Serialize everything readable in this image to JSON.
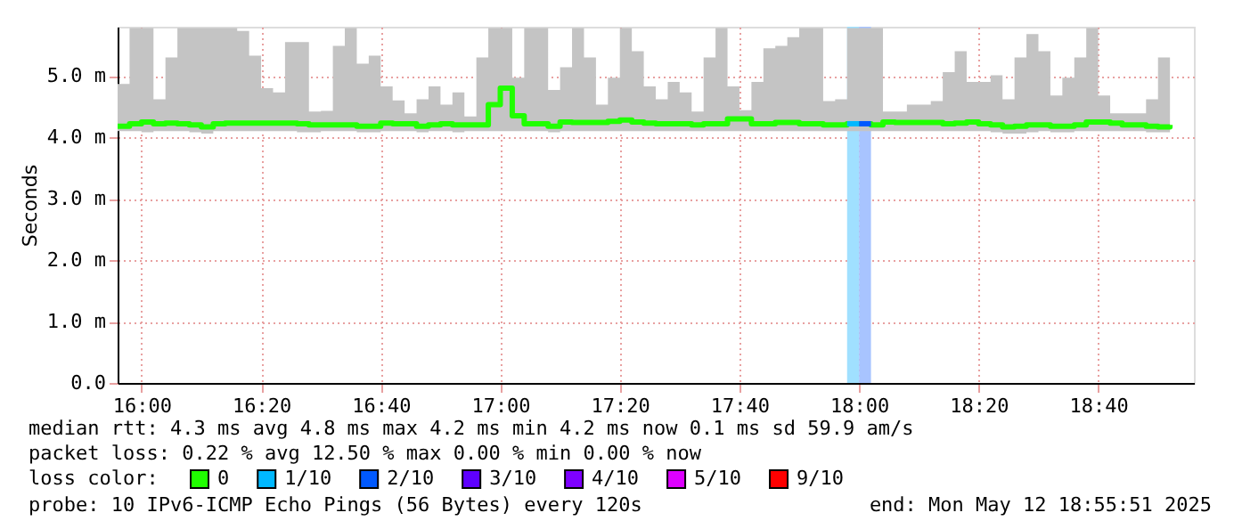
{
  "chart_data": {
    "type": "step",
    "ylabel": "Seconds",
    "legend_title": "loss color:",
    "legend": "bottom",
    "grid": true,
    "xlim": [
      "2025-05-12T15:56",
      "2025-05-12T18:56"
    ],
    "xticks": [
      {
        "value": "2025-05-12T16:00",
        "label": "16:00"
      },
      {
        "value": "2025-05-12T16:20",
        "label": "16:20"
      },
      {
        "value": "2025-05-12T16:40",
        "label": "16:40"
      },
      {
        "value": "2025-05-12T17:00",
        "label": "17:00"
      },
      {
        "value": "2025-05-12T17:20",
        "label": "17:20"
      },
      {
        "value": "2025-05-12T17:40",
        "label": "17:40"
      },
      {
        "value": "2025-05-12T18:00",
        "label": "18:00"
      },
      {
        "value": "2025-05-12T18:20",
        "label": "18:20"
      },
      {
        "value": "2025-05-12T18:40",
        "label": "18:40"
      }
    ],
    "ylim": [
      0,
      5.8
    ],
    "yticks": [
      {
        "value": 0,
        "label": "0.0"
      },
      {
        "value": 1,
        "label": "1.0 m"
      },
      {
        "value": 2,
        "label": "2.0 m"
      },
      {
        "value": 3,
        "label": "3.0 m"
      },
      {
        "value": 4,
        "label": "4.0 m"
      },
      {
        "value": 5,
        "label": "5.0 m"
      }
    ],
    "bands": [
      {
        "axis": "x",
        "from": "2025-05-12T17:58",
        "to": "2025-05-12T18:00",
        "color": "#a0e0ff"
      },
      {
        "axis": "x",
        "from": "2025-05-12T18:00",
        "to": "2025-05-12T18:02",
        "color": "#a8c4ff"
      }
    ],
    "series": [
      {
        "name": "0",
        "color": "#20ff00",
        "x": [
          "2025-05-12T15:56",
          "2025-05-12T15:58",
          "2025-05-12T16:00",
          "2025-05-12T16:02",
          "2025-05-12T16:04",
          "2025-05-12T16:06",
          "2025-05-12T16:08",
          "2025-05-12T16:10",
          "2025-05-12T16:12",
          "2025-05-12T16:14",
          "2025-05-12T16:16",
          "2025-05-12T16:18",
          "2025-05-12T16:20",
          "2025-05-12T16:22",
          "2025-05-12T16:24",
          "2025-05-12T16:26",
          "2025-05-12T16:28",
          "2025-05-12T16:30",
          "2025-05-12T16:32",
          "2025-05-12T16:34",
          "2025-05-12T16:36",
          "2025-05-12T16:38",
          "2025-05-12T16:40",
          "2025-05-12T16:42",
          "2025-05-12T16:44",
          "2025-05-12T16:46",
          "2025-05-12T16:48",
          "2025-05-12T16:50",
          "2025-05-12T16:52",
          "2025-05-12T16:54",
          "2025-05-12T16:56",
          "2025-05-12T16:58",
          "2025-05-12T17:00",
          "2025-05-12T17:02",
          "2025-05-12T17:04",
          "2025-05-12T17:06",
          "2025-05-12T17:08",
          "2025-05-12T17:10",
          "2025-05-12T17:12",
          "2025-05-12T17:14",
          "2025-05-12T17:16",
          "2025-05-12T17:18",
          "2025-05-12T17:20",
          "2025-05-12T17:22",
          "2025-05-12T17:24",
          "2025-05-12T17:26",
          "2025-05-12T17:28",
          "2025-05-12T17:30",
          "2025-05-12T17:32",
          "2025-05-12T17:34",
          "2025-05-12T17:36",
          "2025-05-12T17:38",
          "2025-05-12T17:40",
          "2025-05-12T17:42",
          "2025-05-12T17:44",
          "2025-05-12T17:46",
          "2025-05-12T17:48",
          "2025-05-12T17:50",
          "2025-05-12T17:52",
          "2025-05-12T17:54",
          "2025-05-12T17:56",
          "2025-05-12T17:58",
          "2025-05-12T18:00",
          "2025-05-12T18:02",
          "2025-05-12T18:04",
          "2025-05-12T18:06",
          "2025-05-12T18:08",
          "2025-05-12T18:10",
          "2025-05-12T18:12",
          "2025-05-12T18:14",
          "2025-05-12T18:16",
          "2025-05-12T18:18",
          "2025-05-12T18:20",
          "2025-05-12T18:22",
          "2025-05-12T18:24",
          "2025-05-12T18:26",
          "2025-05-12T18:28",
          "2025-05-12T18:30",
          "2025-05-12T18:32",
          "2025-05-12T18:34",
          "2025-05-12T18:36",
          "2025-05-12T18:38",
          "2025-05-12T18:40",
          "2025-05-12T18:42",
          "2025-05-12T18:44",
          "2025-05-12T18:46",
          "2025-05-12T18:48",
          "2025-05-12T18:50",
          "2025-05-12T18:52"
        ],
        "values": [
          4.18,
          4.22,
          4.25,
          4.22,
          4.23,
          4.22,
          4.2,
          4.17,
          4.22,
          4.23,
          4.23,
          4.23,
          4.23,
          4.23,
          4.23,
          4.22,
          4.2,
          4.2,
          4.2,
          4.2,
          4.18,
          4.18,
          4.23,
          4.22,
          4.22,
          4.18,
          4.2,
          4.22,
          4.2,
          4.2,
          4.2,
          4.53,
          4.8,
          4.35,
          4.22,
          4.22,
          4.18,
          4.25,
          4.24,
          4.24,
          4.24,
          4.26,
          4.28,
          4.25,
          4.23,
          4.22,
          4.22,
          4.22,
          4.2,
          4.22,
          4.22,
          4.3,
          4.3,
          4.22,
          4.22,
          4.24,
          4.24,
          4.22,
          4.22,
          4.2,
          4.2,
          4.22,
          4.22,
          4.2,
          4.25,
          4.24,
          4.24,
          4.24,
          4.24,
          4.22,
          4.23,
          4.25,
          4.22,
          4.2,
          4.17,
          4.18,
          4.2,
          4.2,
          4.18,
          4.18,
          4.2,
          4.25,
          4.25,
          4.23,
          4.2,
          4.2,
          4.18,
          4.17,
          4.2
        ],
        "lower": [
          4.1,
          4.1,
          4.08,
          4.1,
          4.1,
          4.1,
          4.08,
          4.06,
          4.1,
          4.1,
          4.1,
          4.1,
          4.1,
          4.1,
          4.1,
          4.08,
          4.08,
          4.1,
          4.1,
          4.1,
          4.08,
          4.08,
          4.1,
          4.1,
          4.1,
          4.08,
          4.1,
          4.1,
          4.08,
          4.1,
          4.1,
          4.1,
          4.1,
          4.1,
          4.1,
          4.1,
          4.08,
          4.1,
          4.1,
          4.1,
          4.1,
          4.1,
          4.1,
          4.1,
          4.1,
          4.1,
          4.1,
          4.1,
          4.1,
          4.1,
          4.1,
          4.1,
          4.1,
          4.1,
          4.1,
          4.1,
          4.1,
          4.1,
          4.1,
          4.1,
          4.1,
          4.1,
          4.1,
          4.1,
          4.1,
          4.1,
          4.1,
          4.1,
          4.1,
          4.1,
          4.1,
          4.1,
          4.1,
          4.08,
          4.06,
          4.06,
          4.08,
          4.1,
          4.08,
          4.08,
          4.1,
          4.1,
          4.1,
          4.1,
          4.1,
          4.1,
          4.08,
          4.08,
          4.1
        ],
        "upper": [
          4.87,
          5.78,
          5.78,
          4.62,
          5.3,
          5.78,
          5.78,
          5.78,
          5.78,
          5.78,
          5.73,
          5.33,
          4.8,
          4.73,
          5.55,
          5.55,
          4.42,
          4.43,
          5.49,
          5.78,
          5.2,
          5.33,
          4.83,
          4.6,
          4.39,
          4.62,
          4.83,
          4.53,
          4.73,
          4.34,
          5.3,
          5.78,
          5.78,
          4.97,
          5.78,
          5.78,
          4.77,
          5.14,
          5.78,
          5.3,
          4.53,
          4.97,
          5.78,
          5.4,
          4.83,
          4.62,
          4.9,
          4.73,
          4.42,
          5.3,
          5.78,
          4.83,
          4.44,
          4.9,
          5.45,
          5.49,
          5.63,
          5.78,
          5.78,
          4.59,
          4.62,
          5.78,
          5.78,
          5.78,
          4.42,
          4.42,
          4.53,
          4.53,
          4.59,
          5.06,
          5.4,
          4.9,
          4.9,
          5.01,
          4.62,
          5.3,
          5.68,
          5.4,
          4.68,
          4.97,
          5.3,
          5.78,
          4.68,
          4.39,
          4.39,
          4.39,
          4.62,
          5.3,
          5.78
        ]
      },
      {
        "name": "1/10",
        "color": "#00b8ff",
        "x": [
          "2025-05-12T17:58",
          "2025-05-12T18:00"
        ],
        "values": [
          4.22,
          4.22
        ]
      },
      {
        "name": "2/10",
        "color": "#0059ff",
        "x": [
          "2025-05-12T18:00",
          "2025-05-12T18:02"
        ],
        "values": [
          4.22,
          4.22
        ]
      },
      {
        "name": "3/10",
        "color": "#5e00ff"
      },
      {
        "name": "4/10",
        "color": "#7e00ff"
      },
      {
        "name": "5/10",
        "color": "#dd00ff"
      },
      {
        "name": "9/10",
        "color": "#ff0000"
      }
    ],
    "annotations": [
      "median rtt:  4.3 ms avg  4.8 ms max  4.2 ms min  4.2 ms now  0.1 ms sd  59.9   am/s",
      "packet loss: 0.22 % avg  12.50 % max  0.00 % min  0.00 % now",
      "probe:       10 IPv6-ICMP Echo Pings (56 Bytes) every 120s",
      "end: Mon May 12 18:55:51 2025"
    ]
  }
}
